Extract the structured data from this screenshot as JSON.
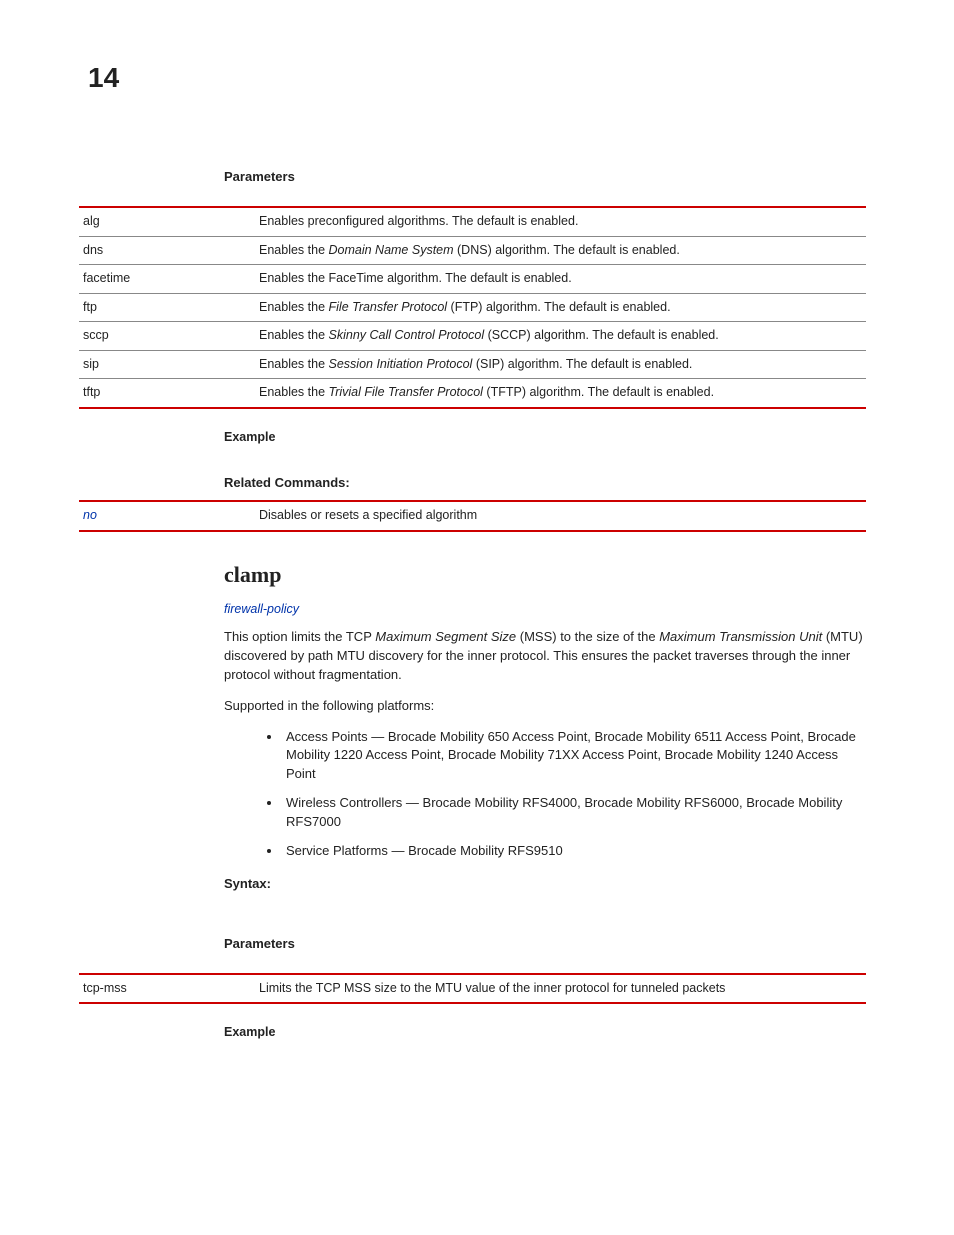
{
  "page_number": "14",
  "section1": {
    "heading": "Parameters",
    "rows": [
      {
        "name": "alg",
        "desc_pre": "Enables preconfigured algorithms. The default is enabled.",
        "desc_it": "",
        "desc_post": ""
      },
      {
        "name": "dns",
        "desc_pre": "Enables the ",
        "desc_it": "Domain Name System",
        "desc_post": " (DNS) algorithm. The default is enabled."
      },
      {
        "name": "facetime",
        "desc_pre": "Enables the FaceTime algorithm. The default is enabled.",
        "desc_it": "",
        "desc_post": ""
      },
      {
        "name": "ftp",
        "desc_pre": "Enables the ",
        "desc_it": "File Transfer Protocol",
        "desc_post": " (FTP) algorithm. The default is enabled."
      },
      {
        "name": "sccp",
        "desc_pre": "Enables the ",
        "desc_it": "Skinny Call Control Protocol",
        "desc_post": " (SCCP) algorithm. The default is enabled."
      },
      {
        "name": "sip",
        "desc_pre": "Enables the ",
        "desc_it": "Session Initiation Protocol",
        "desc_post": " (SIP) algorithm. The default is enabled."
      },
      {
        "name": "tftp",
        "desc_pre": "Enables the ",
        "desc_it": "Trivial File Transfer Protocol",
        "desc_post": " (TFTP) algorithm. The default is enabled."
      }
    ],
    "example_label": "Example",
    "related_heading": "Related Commands:",
    "related_rows": [
      {
        "name": "no",
        "desc": "Disables or resets a specified algorithm"
      }
    ]
  },
  "clamp": {
    "title": "clamp",
    "link": "firewall-policy",
    "para_pre": "This option limits the TCP ",
    "para_it1": "Maximum Segment Size",
    "para_mid1": " (MSS) to the size of the ",
    "para_it2": "Maximum Transmission Unit",
    "para_post": " (MTU) discovered by path MTU discovery for the inner protocol. This ensures the packet traverses through the inner protocol without fragmentation.",
    "supported_intro": "Supported in the following platforms:",
    "platforms": [
      "Access Points — Brocade Mobility 650 Access Point, Brocade Mobility 6511 Access Point, Brocade Mobility 1220 Access Point, Brocade Mobility 71XX Access Point, Brocade Mobility 1240 Access Point",
      "Wireless Controllers — Brocade Mobility RFS4000, Brocade Mobility RFS6000, Brocade Mobility RFS7000",
      "Service Platforms — Brocade Mobility RFS9510"
    ],
    "syntax_label": "Syntax:",
    "params_label": "Parameters",
    "param_rows": [
      {
        "name": "tcp-mss",
        "desc": "Limits the TCP MSS size to the MTU value of the inner protocol for tunneled packets"
      }
    ],
    "example_label": "Example"
  },
  "colors": {
    "rule": "#cc0000",
    "link": "#0033aa"
  }
}
